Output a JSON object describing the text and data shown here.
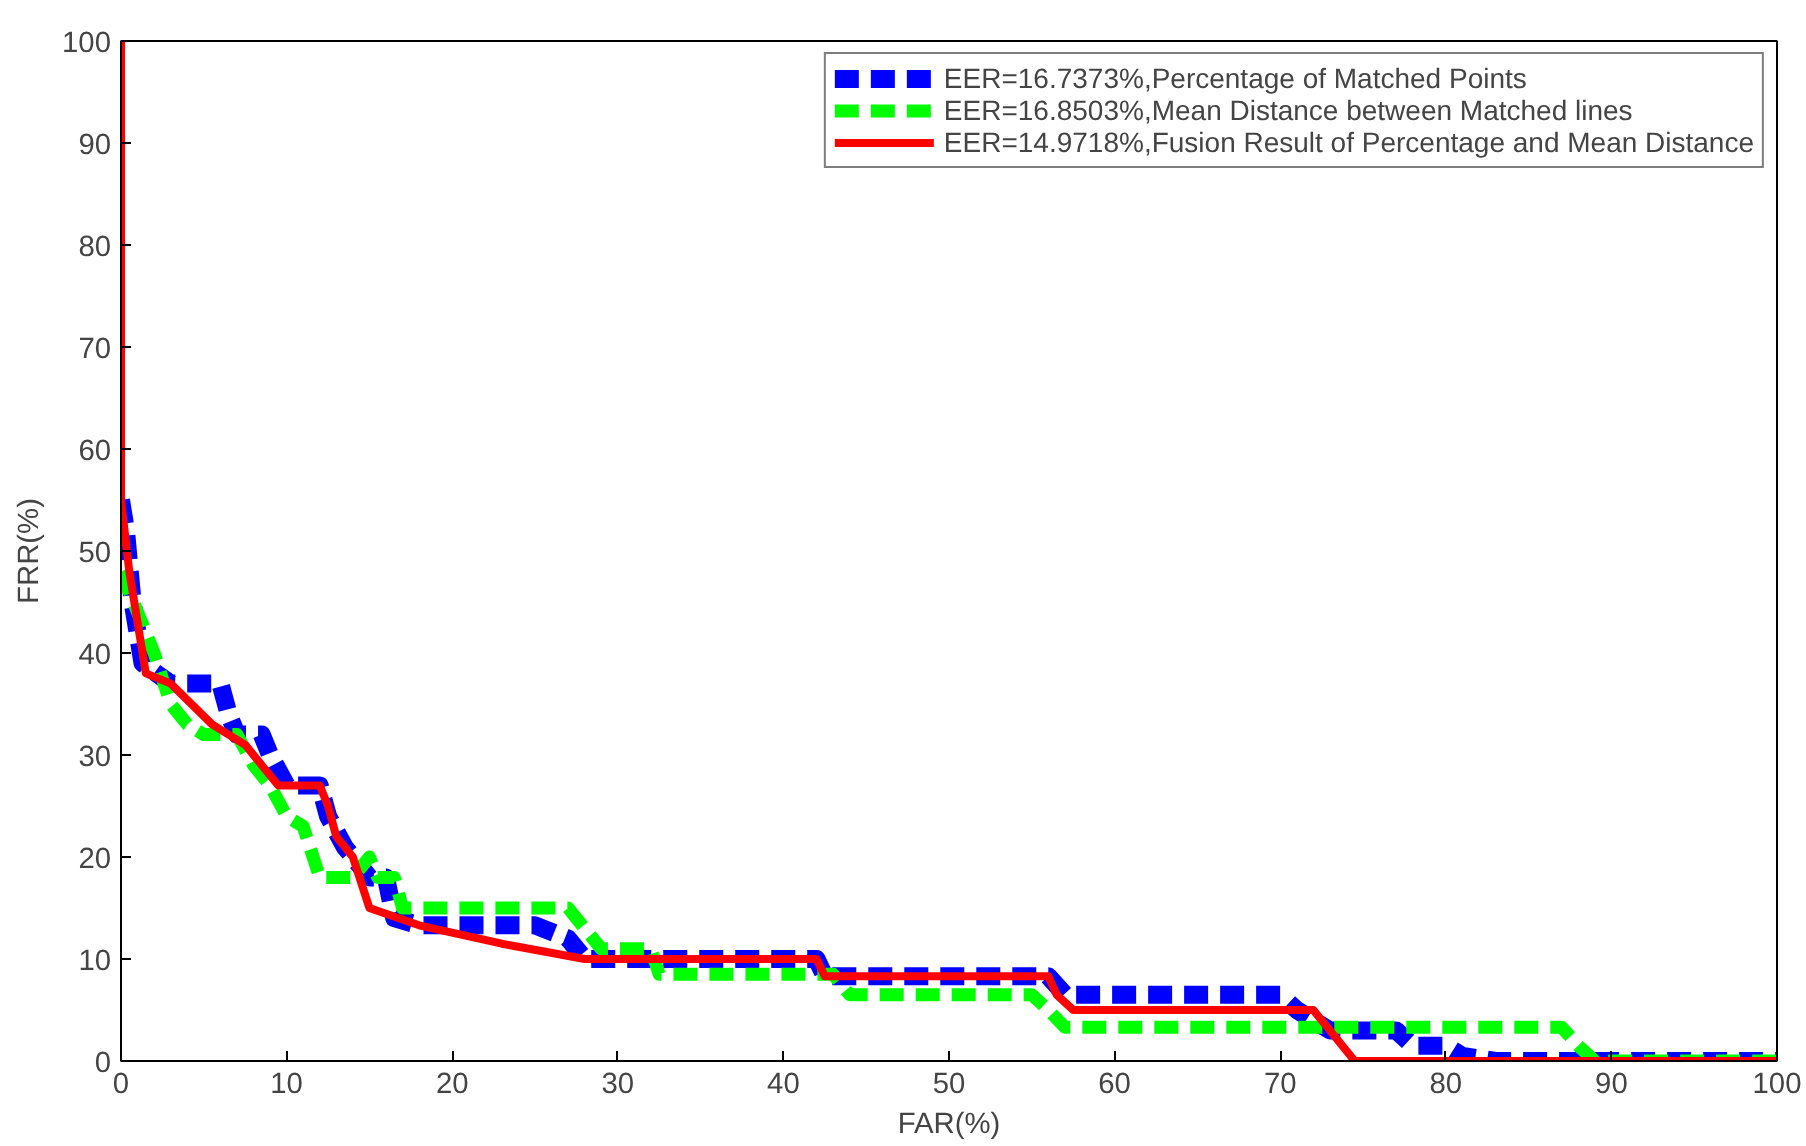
{
  "chart_data": {
    "type": "line",
    "xlabel": "FAR(%)",
    "ylabel": "FRR(%)",
    "xlim": [
      0,
      100
    ],
    "ylim": [
      0,
      100
    ],
    "xticks": [
      0,
      10,
      20,
      30,
      40,
      50,
      60,
      70,
      80,
      90,
      100
    ],
    "yticks": [
      0,
      10,
      20,
      30,
      40,
      50,
      60,
      70,
      80,
      90,
      100
    ],
    "grid": false,
    "legend": "top right",
    "series": [
      {
        "name": "EER=16.7373%,Percentage of Matched Points",
        "color": "#0000ff",
        "line_style": "dashed",
        "x": [
          0,
          0.3,
          0.7,
          1.3,
          3,
          6,
          6.5,
          7,
          8.5,
          9,
          10,
          12,
          12.5,
          13.5,
          15,
          16,
          16.5,
          18,
          25,
          27,
          28,
          42,
          42.5,
          56,
          57,
          70,
          71,
          73,
          77,
          78,
          80,
          81,
          83,
          100
        ],
        "values": [
          55,
          52,
          45,
          39,
          37,
          37,
          34,
          32,
          32,
          30,
          27,
          27,
          24,
          21,
          18,
          18,
          14,
          13.3,
          13.3,
          12,
          10,
          10,
          8.3,
          8.3,
          6.5,
          6.5,
          5,
          3,
          3,
          1.5,
          1.5,
          0.5,
          0,
          0
        ]
      },
      {
        "name": "EER=16.8503%,Mean Distance between Matched lines",
        "color": "#00ff00",
        "line_style": "dashed",
        "x": [
          0,
          1,
          2,
          3,
          4,
          5,
          7,
          8,
          9,
          10,
          11,
          12,
          14,
          15,
          15.5,
          16.5,
          17,
          27,
          28,
          29,
          32,
          32.5,
          43,
          44,
          55,
          56,
          57,
          87,
          88,
          89,
          100
        ],
        "values": [
          48,
          44,
          40,
          35,
          33,
          32,
          32,
          29,
          27,
          24,
          23,
          18,
          18,
          20,
          18,
          18,
          15,
          15,
          13,
          11,
          11,
          8.5,
          8.5,
          6.5,
          6.5,
          5,
          3.3,
          3.3,
          1.5,
          0,
          0
        ]
      },
      {
        "name": "EER=14.9718%,Fusion Result of Percentage and Mean Distance",
        "color": "#ff0000",
        "line_style": "solid",
        "x": [
          0,
          0,
          0.5,
          1,
          1.5,
          3,
          5.5,
          7.5,
          8.5,
          9.5,
          12,
          12.5,
          13,
          14,
          15,
          18,
          23,
          28,
          42,
          42.5,
          56,
          56.5,
          57.5,
          72,
          74.5,
          100
        ],
        "values": [
          100,
          55,
          48,
          43,
          38,
          37,
          33,
          31,
          29,
          27,
          27,
          25,
          22,
          20,
          15,
          13.3,
          11.5,
          10,
          10,
          8.3,
          8.3,
          6.5,
          5,
          5,
          0,
          0
        ]
      }
    ]
  }
}
